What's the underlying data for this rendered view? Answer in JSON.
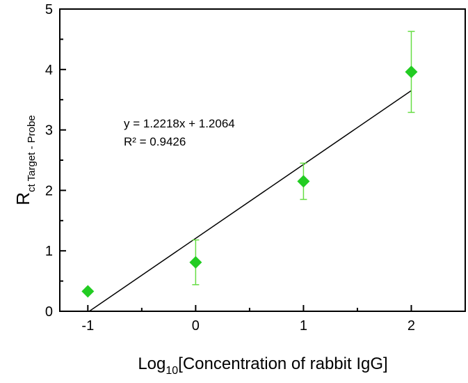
{
  "chart_data": {
    "type": "scatter",
    "xlabel": {
      "main": "Log",
      "sub": "10",
      "rest": "[Concentration of rabbit IgG]"
    },
    "ylabel": {
      "main": "R",
      "sub": "ct Target - Probe"
    },
    "xlim": [
      -1.26,
      2.5
    ],
    "ylim": [
      0,
      5
    ],
    "xticks": [
      -1,
      0,
      1,
      2
    ],
    "xtick_labels": [
      "-1",
      "0",
      "1",
      "2"
    ],
    "yticks": [
      0,
      1,
      2,
      3,
      4,
      5
    ],
    "ytick_labels": [
      "0",
      "1",
      "2",
      "3",
      "4",
      "5"
    ],
    "grid": false,
    "series": [
      {
        "marker": "diamond",
        "color": "#22cc22",
        "errorbar_color": "#66dd44",
        "points": [
          {
            "x": -1,
            "y": 0.33,
            "err": 0
          },
          {
            "x": 0,
            "y": 0.81,
            "err": 0.37
          },
          {
            "x": 1,
            "y": 2.15,
            "err": 0.3
          },
          {
            "x": 2,
            "y": 3.96,
            "err": 0.67
          }
        ]
      }
    ],
    "fit_line": {
      "slope": 1.2218,
      "intercept": 1.2064,
      "x_range": [
        -0.987,
        2
      ],
      "color": "#000000"
    },
    "annotations": [
      "y = 1.2218x + 1.2064",
      "R² = 0.9426"
    ]
  }
}
